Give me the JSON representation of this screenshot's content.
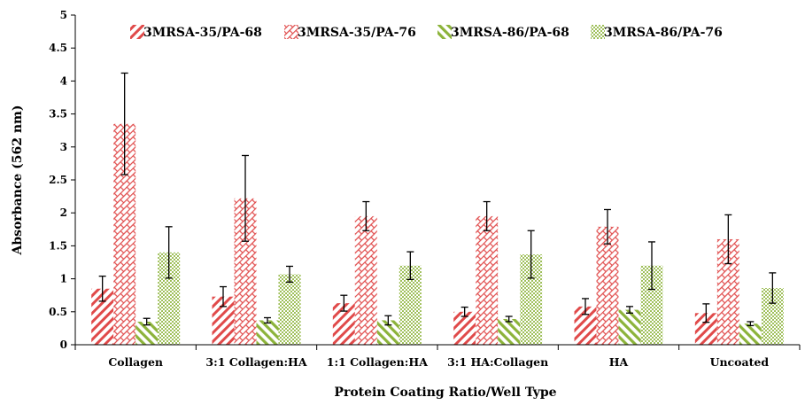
{
  "chart_data": {
    "type": "bar",
    "title": "",
    "xlabel": "Protein Coating Ratio/Well Type",
    "ylabel": "Absorbance  (562 nm)",
    "ylim": [
      0,
      5
    ],
    "yticks": [
      "0",
      "0.5",
      "1",
      "1.5",
      "2",
      "2.5",
      "3",
      "3.5",
      "4",
      "4.5",
      "5"
    ],
    "grid": false,
    "legend": "top",
    "categories": [
      "Collagen",
      "3:1 Collagen:HA",
      "1:1 Collagen:HA",
      "3:1 HA:Collagen",
      "HA",
      "Uncoated"
    ],
    "series": [
      {
        "name": "3MRSA-35/PA-68",
        "pattern": "wide-diagonal",
        "color": "#e04a4a",
        "values": [
          0.85,
          0.73,
          0.63,
          0.5,
          0.58,
          0.48
        ],
        "errors": [
          0.19,
          0.15,
          0.12,
          0.07,
          0.12,
          0.14
        ]
      },
      {
        "name": "3MRSA-35/PA-76",
        "pattern": "brick",
        "color": "#e04a4a",
        "values": [
          3.35,
          2.22,
          1.95,
          1.95,
          1.79,
          1.6
        ],
        "errors": [
          0.77,
          0.65,
          0.22,
          0.22,
          0.26,
          0.37
        ]
      },
      {
        "name": "3MRSA-86/PA-68",
        "pattern": "wide-upward-diagonal",
        "color": "#8cb33a",
        "values": [
          0.35,
          0.37,
          0.37,
          0.39,
          0.53,
          0.32
        ],
        "errors": [
          0.05,
          0.04,
          0.07,
          0.04,
          0.05,
          0.03
        ]
      },
      {
        "name": "3MRSA-86/PA-76",
        "pattern": "dots",
        "color": "#8cb33a",
        "values": [
          1.4,
          1.07,
          1.2,
          1.37,
          1.2,
          0.86
        ],
        "errors": [
          0.39,
          0.12,
          0.21,
          0.36,
          0.36,
          0.23
        ]
      }
    ]
  }
}
